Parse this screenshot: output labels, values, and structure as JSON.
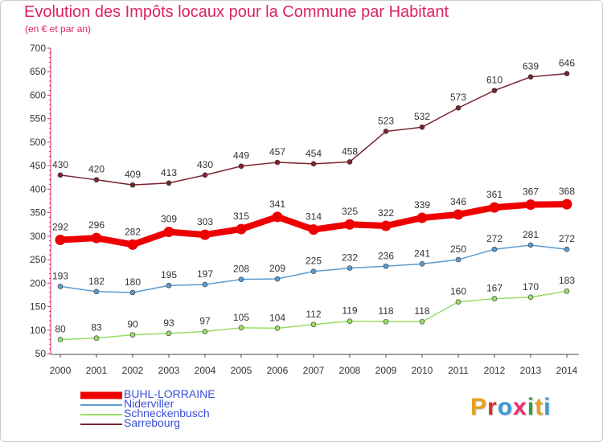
{
  "header": {
    "title": "Evolution des Impôts locaux pour la Commune par Habitant",
    "subtitle": "(en € et par an)"
  },
  "logo": {
    "text": "Proxiti",
    "colors": [
      "#e8a020",
      "#d93030",
      "#3a9ad9",
      "#e83070",
      "#30a040",
      "#e8a020",
      "#3a9ad9"
    ]
  },
  "chart_data": {
    "type": "line",
    "title": "Evolution des Impôts locaux pour la Commune par Habitant",
    "subtitle": "(en € et par an)",
    "x": [
      "2000",
      "2001",
      "2002",
      "2003",
      "2004",
      "2005",
      "2006",
      "2007",
      "2008",
      "2009",
      "2010",
      "2011",
      "2012",
      "2013",
      "2014"
    ],
    "yticks": [
      "50",
      "100",
      "150",
      "200",
      "250",
      "300",
      "350",
      "400",
      "450",
      "500",
      "550",
      "600",
      "650",
      "700"
    ],
    "ylim": [
      50,
      700
    ],
    "grid": false,
    "legend_position": "bottom-left",
    "series": [
      {
        "name": "BUHL-LORRAINE",
        "color": "#ee0000",
        "values": [
          292,
          296,
          282,
          309,
          303,
          315,
          341,
          314,
          325,
          322,
          339,
          346,
          361,
          367,
          368
        ]
      },
      {
        "name": "Niderviller",
        "color": "#5c9bd0",
        "values": [
          193,
          182,
          180,
          195,
          197,
          208,
          209,
          225,
          232,
          236,
          241,
          250,
          272,
          281,
          272
        ]
      },
      {
        "name": "Schneckenbusch",
        "color": "#99dd66",
        "values": [
          80,
          83,
          90,
          93,
          97,
          105,
          104,
          112,
          119,
          118,
          118,
          160,
          167,
          170,
          183
        ]
      },
      {
        "name": "Sarrebourg",
        "color": "#7a2430",
        "values": [
          430,
          420,
          409,
          413,
          430,
          449,
          457,
          454,
          458,
          523,
          532,
          573,
          610,
          639,
          646
        ]
      }
    ]
  }
}
